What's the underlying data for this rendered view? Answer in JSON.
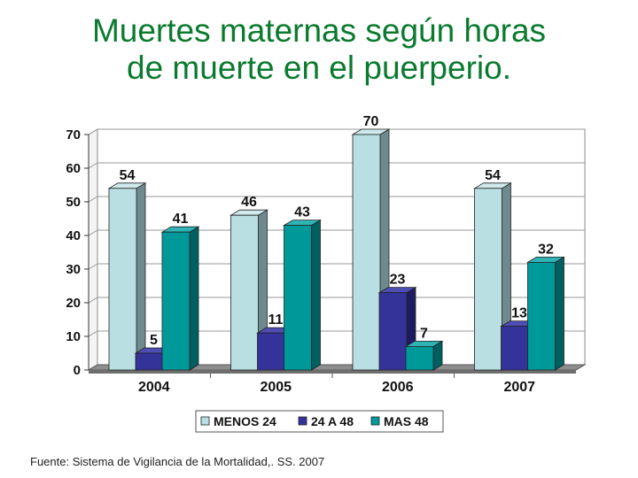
{
  "title_lines": [
    "Muertes maternas según horas",
    "de muerte en el puerperio."
  ],
  "source": "Fuente: Sistema de Vigilancia de la Mortalidad,. SS. 2007",
  "chart_data": {
    "type": "bar",
    "title": "Muertes maternas según horas de muerte en el puerperio.",
    "categories": [
      "2004",
      "2005",
      "2006",
      "2007"
    ],
    "series": [
      {
        "name": "MENOS 24",
        "values": [
          54,
          46,
          70,
          54
        ],
        "color": "#b9dfe3",
        "side_color": "#6f8a8e",
        "top_color": "#cfe9ec"
      },
      {
        "name": "24 A 48",
        "values": [
          5,
          11,
          23,
          13
        ],
        "color": "#33339a",
        "side_color": "#1c1c5e",
        "top_color": "#4d4db3"
      },
      {
        "name": "MAS 48",
        "values": [
          41,
          43,
          7,
          32
        ],
        "color": "#00999a",
        "side_color": "#005f60",
        "top_color": "#2fb3b4"
      }
    ],
    "ylim": [
      0,
      70
    ],
    "yticks": [
      0,
      10,
      20,
      30,
      40,
      50,
      60,
      70
    ],
    "grid": true,
    "legend": "bottom"
  }
}
